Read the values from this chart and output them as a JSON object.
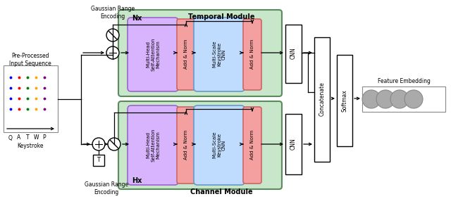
{
  "fig_width": 6.4,
  "fig_height": 2.83,
  "dpi": 100,
  "bg_color": "#ffffff",
  "green_box_color": "#c8e6c9",
  "green_box_edge": "#5a8a5e",
  "purple_box_color": "#d8b4fe",
  "purple_box_edge": "#9966cc",
  "blue_box_color": "#bfdbfe",
  "blue_box_edge": "#6699cc",
  "pink_box_color": "#f4a0a0",
  "pink_box_edge": "#cc6666",
  "gray_circle_color": "#aaaaaa",
  "title_top": "Temporal Module",
  "title_bottom": "Channel Module",
  "label_nx": "Nx",
  "label_hx": "Hx",
  "label_feature": "Feature Embedding",
  "label_concatenate": "Concatenate",
  "label_softmax": "Softmax",
  "label_cnn": "CNN",
  "label_multi_head": "Multi-Head\nSelf-Attention\nMechanism",
  "label_add_norm": "Add & Norm",
  "label_multi_scale": "Multi-Scale\nKeystroke\nCNN"
}
